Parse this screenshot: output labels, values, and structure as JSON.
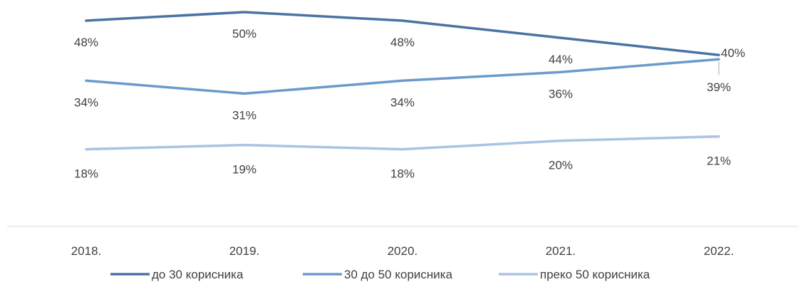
{
  "chart_data": {
    "type": "line",
    "categories": [
      "2018.",
      "2019.",
      "2020.",
      "2021.",
      "2022."
    ],
    "series": [
      {
        "name": "до 30 корисника",
        "color": "#4A73A3",
        "values": [
          48,
          50,
          48,
          44,
          40
        ],
        "labels": [
          "48%",
          "50%",
          "48%",
          "44%",
          "40%"
        ]
      },
      {
        "name": "30 до 50 корисника",
        "color": "#6A9BCB",
        "values": [
          34,
          31,
          34,
          36,
          39
        ],
        "labels": [
          "34%",
          "31%",
          "34%",
          "36%",
          "39%"
        ]
      },
      {
        "name": "преко 50 корисника",
        "color": "#A9C4E2",
        "values": [
          18,
          19,
          18,
          20,
          21
        ],
        "labels": [
          "18%",
          "19%",
          "18%",
          "20%",
          "21%"
        ]
      }
    ],
    "ylim": [
      0,
      50
    ],
    "grid": false,
    "legend_position": "bottom"
  }
}
